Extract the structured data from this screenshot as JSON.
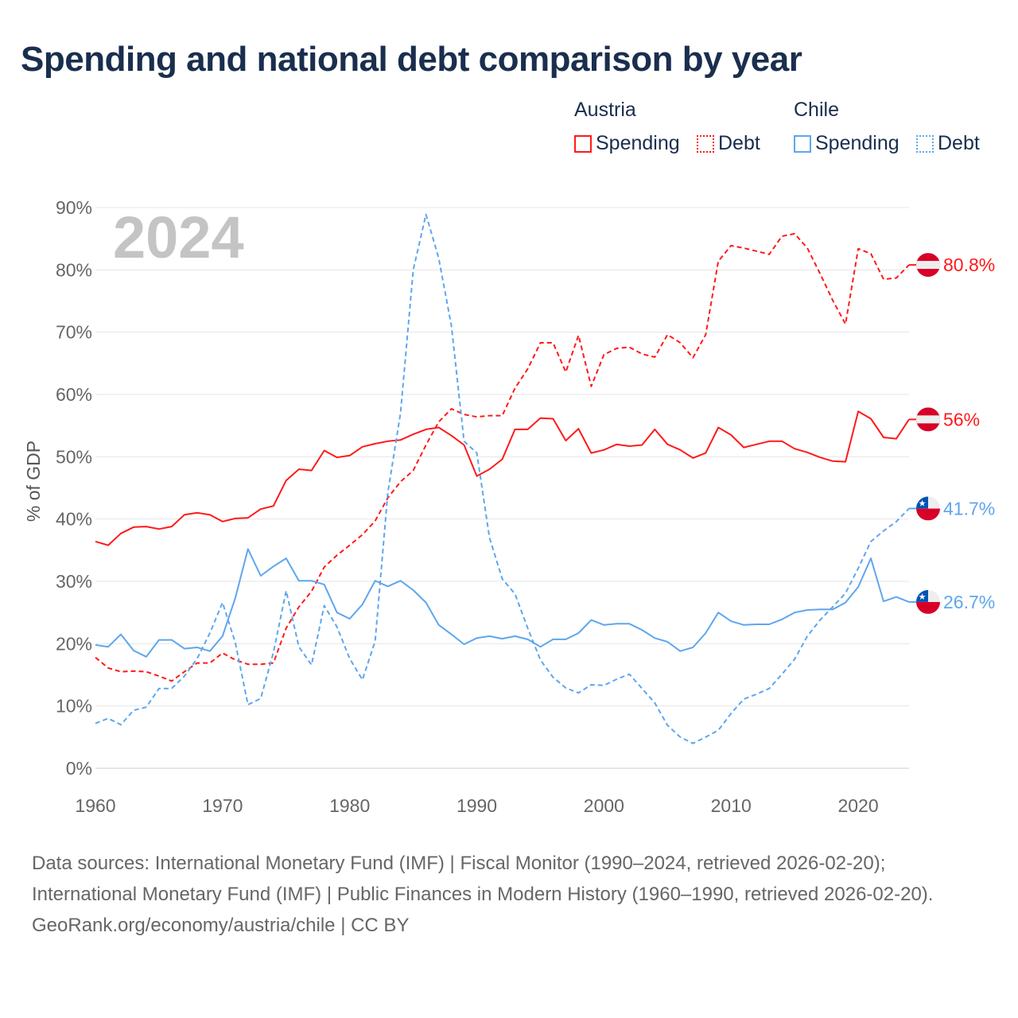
{
  "title": "Spending and national debt comparison by year",
  "legend": {
    "groups": [
      {
        "country": "Austria",
        "items": [
          {
            "label": "Spending",
            "style": "solid"
          },
          {
            "label": "Debt",
            "style": "dotted"
          }
        ],
        "color": "#ff1a1a"
      },
      {
        "country": "Chile",
        "items": [
          {
            "label": "Spending",
            "style": "solid"
          },
          {
            "label": "Debt",
            "style": "dotted"
          }
        ],
        "color": "#5ea6ee"
      }
    ]
  },
  "footer": {
    "sources": "Data sources: International Monetary Fund (IMF) | Fiscal Monitor (1990–2024, retrieved 2026-02-20); International Monetary Fund (IMF) | Public Finances in Modern History (1960–1990, retrieved 2026-02-20).",
    "credit": "GeoRank.org/economy/austria/chile | CC BY"
  },
  "chart_data": {
    "type": "line",
    "title": "Spending and national debt comparison by year",
    "watermark_year": "2024",
    "xlabel": "",
    "ylabel": "% of GDP",
    "xlim": [
      1960,
      2024
    ],
    "ylim": [
      0,
      90
    ],
    "x_ticks": [
      1960,
      1970,
      1980,
      1990,
      2000,
      2010,
      2020
    ],
    "y_ticks": [
      0,
      10,
      20,
      30,
      40,
      50,
      60,
      70,
      80,
      90
    ],
    "y_tick_labels": [
      "0%",
      "10%",
      "20%",
      "30%",
      "40%",
      "50%",
      "60%",
      "70%",
      "80%",
      "90%"
    ],
    "grid": true,
    "legend_position": "top-right",
    "x_start": 1960,
    "series": [
      {
        "name": "Austria Spending",
        "country": "Austria",
        "flag": "austria",
        "color": "#ff1a1a",
        "dash": false,
        "end_label": "56%",
        "values": [
          36.4,
          35.8,
          37.7,
          38.7,
          38.8,
          38.4,
          38.8,
          40.7,
          41.0,
          40.7,
          39.6,
          40.1,
          40.2,
          41.6,
          42.1,
          46.2,
          48.0,
          47.8,
          51.0,
          49.9,
          50.2,
          51.6,
          52.1,
          52.5,
          52.7,
          53.6,
          54.4,
          54.7,
          53.4,
          51.9,
          46.9,
          48.0,
          49.6,
          54.4,
          54.4,
          56.2,
          56.1,
          52.6,
          54.5,
          50.6,
          51.1,
          52.0,
          51.7,
          51.9,
          54.4,
          52.0,
          51.1,
          49.8,
          50.6,
          54.7,
          53.5,
          51.5,
          52.0,
          52.5,
          52.5,
          51.3,
          50.7,
          49.9,
          49.3,
          49.2,
          57.3,
          56.1,
          53.1,
          52.9,
          56.0
        ]
      },
      {
        "name": "Austria Debt",
        "country": "Austria",
        "flag": "austria",
        "color": "#ff1a1a",
        "dash": true,
        "end_label": "80.8%",
        "values": [
          17.8,
          16.1,
          15.5,
          15.6,
          15.5,
          14.8,
          14.0,
          15.5,
          16.9,
          16.9,
          18.5,
          17.4,
          16.7,
          16.7,
          16.9,
          22.5,
          25.9,
          28.4,
          32.3,
          34.2,
          35.8,
          37.5,
          39.7,
          43.4,
          46.0,
          47.8,
          51.9,
          55.6,
          57.7,
          56.8,
          56.4,
          56.6,
          56.6,
          61.0,
          64.1,
          68.3,
          68.3,
          63.6,
          69.5,
          61.3,
          66.4,
          67.4,
          67.6,
          66.5,
          66.0,
          69.6,
          68.3,
          65.9,
          69.6,
          81.4,
          83.9,
          83.5,
          83.0,
          82.5,
          85.4,
          85.8,
          83.5,
          79.4,
          75.1,
          71.3,
          83.4,
          82.6,
          78.5,
          78.7,
          80.8
        ]
      },
      {
        "name": "Chile Spending",
        "country": "Chile",
        "flag": "chile",
        "color": "#5ea6ee",
        "dash": false,
        "end_label": "26.7%",
        "values": [
          19.8,
          19.5,
          21.5,
          18.9,
          17.9,
          20.6,
          20.6,
          19.2,
          19.4,
          18.8,
          21.2,
          27.3,
          35.2,
          30.9,
          32.4,
          33.7,
          30.1,
          30.1,
          29.5,
          25.0,
          24.0,
          26.3,
          30.1,
          29.2,
          30.1,
          28.6,
          26.6,
          23.0,
          21.5,
          19.9,
          20.9,
          21.2,
          20.8,
          21.2,
          20.7,
          19.5,
          20.7,
          20.7,
          21.7,
          23.8,
          23.0,
          23.2,
          23.2,
          22.2,
          20.9,
          20.3,
          18.8,
          19.4,
          21.7,
          25.0,
          23.6,
          23.0,
          23.1,
          23.1,
          23.9,
          25.0,
          25.4,
          25.5,
          25.5,
          26.6,
          29.1,
          33.7,
          26.8,
          27.5,
          26.7
        ]
      },
      {
        "name": "Chile Debt",
        "country": "Chile",
        "flag": "chile",
        "color": "#5ea6ee",
        "dash": true,
        "end_label": "41.7%",
        "values": [
          7.2,
          8.0,
          7.0,
          9.3,
          9.8,
          12.8,
          12.8,
          14.8,
          17.6,
          21.7,
          26.6,
          20.2,
          10.2,
          11.2,
          18.6,
          28.5,
          19.5,
          16.6,
          26.1,
          22.7,
          17.6,
          14.2,
          20.4,
          44.2,
          57.0,
          80.0,
          88.9,
          81.9,
          71.0,
          52.5,
          50.6,
          37.0,
          30.4,
          28.0,
          22.5,
          17.4,
          14.6,
          12.9,
          12.1,
          13.4,
          13.3,
          14.3,
          15.1,
          12.8,
          10.5,
          6.9,
          5.0,
          4.0,
          5.0,
          6.1,
          8.8,
          11.1,
          11.9,
          12.8,
          15.1,
          17.5,
          21.2,
          23.8,
          25.9,
          28.1,
          32.1,
          36.4,
          38.1,
          39.6,
          41.7
        ]
      }
    ]
  }
}
